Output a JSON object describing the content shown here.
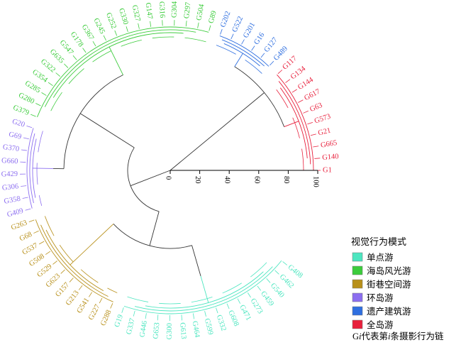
{
  "groups": [
    {
      "key": "single",
      "label": "单点游",
      "color": "#4de6c0"
    },
    {
      "key": "sea",
      "label": "海岛风光游",
      "color": "#3ccc3c"
    },
    {
      "key": "street",
      "label": "街巷空间游",
      "color": "#b8901a"
    },
    {
      "key": "ring",
      "label": "环岛游",
      "color": "#8c6ef0"
    },
    {
      "key": "heritage",
      "label": "遗产建筑游",
      "color": "#2f6fe0"
    },
    {
      "key": "whole",
      "label": "全岛游",
      "color": "#e8203c"
    }
  ],
  "legend": {
    "title": "视觉行为模式",
    "note_prefix": "G",
    "note_italic": "i",
    "note_suffix": "代表第",
    "note_italic2": "i",
    "note_end": "条摄影行为链"
  },
  "scale": {
    "ticks": [
      "0",
      "20",
      "40",
      "60",
      "80",
      "100"
    ]
  },
  "leaves": [
    {
      "label": "G1",
      "group": "whole"
    },
    {
      "label": "G140",
      "group": "whole"
    },
    {
      "label": "G665",
      "group": "whole"
    },
    {
      "label": "G21",
      "group": "whole"
    },
    {
      "label": "G573",
      "group": "whole"
    },
    {
      "label": "G63",
      "group": "whole"
    },
    {
      "label": "G617",
      "group": "whole"
    },
    {
      "label": "G144",
      "group": "whole"
    },
    {
      "label": "G134",
      "group": "whole"
    },
    {
      "label": "G117",
      "group": "whole"
    },
    {
      "label": "G489",
      "group": "heritage"
    },
    {
      "label": "G127",
      "group": "heritage"
    },
    {
      "label": "G16",
      "group": "heritage"
    },
    {
      "label": "G201",
      "group": "heritage"
    },
    {
      "label": "G522",
      "group": "heritage"
    },
    {
      "label": "G202",
      "group": "heritage"
    },
    {
      "label": "G89",
      "group": "sea"
    },
    {
      "label": "G504",
      "group": "sea"
    },
    {
      "label": "G297",
      "group": "sea"
    },
    {
      "label": "G304",
      "group": "sea"
    },
    {
      "label": "G316",
      "group": "sea"
    },
    {
      "label": "G147",
      "group": "sea"
    },
    {
      "label": "G327",
      "group": "sea"
    },
    {
      "label": "G330",
      "group": "sea"
    },
    {
      "label": "G252",
      "group": "sea"
    },
    {
      "label": "G245",
      "group": "sea"
    },
    {
      "label": "G367",
      "group": "sea"
    },
    {
      "label": "G178",
      "group": "sea"
    },
    {
      "label": "G547",
      "group": "sea"
    },
    {
      "label": "G635",
      "group": "sea"
    },
    {
      "label": "G322",
      "group": "sea"
    },
    {
      "label": "G354",
      "group": "sea"
    },
    {
      "label": "G285",
      "group": "sea"
    },
    {
      "label": "G280",
      "group": "sea"
    },
    {
      "label": "G379",
      "group": "sea"
    },
    {
      "label": "G20",
      "group": "ring"
    },
    {
      "label": "G69",
      "group": "ring"
    },
    {
      "label": "G370",
      "group": "ring"
    },
    {
      "label": "G660",
      "group": "ring"
    },
    {
      "label": "G429",
      "group": "ring"
    },
    {
      "label": "G306",
      "group": "ring"
    },
    {
      "label": "G358",
      "group": "ring"
    },
    {
      "label": "G409",
      "group": "ring"
    },
    {
      "label": "G263",
      "group": "street"
    },
    {
      "label": "G68",
      "group": "street"
    },
    {
      "label": "G537",
      "group": "street"
    },
    {
      "label": "G508",
      "group": "street"
    },
    {
      "label": "G529",
      "group": "street"
    },
    {
      "label": "G623",
      "group": "street"
    },
    {
      "label": "G157",
      "group": "street"
    },
    {
      "label": "G213",
      "group": "street"
    },
    {
      "label": "G541",
      "group": "street"
    },
    {
      "label": "G227",
      "group": "street"
    },
    {
      "label": "G288",
      "group": "street"
    },
    {
      "label": "G19",
      "group": "single"
    },
    {
      "label": "G337",
      "group": "single"
    },
    {
      "label": "G446",
      "group": "single"
    },
    {
      "label": "G653",
      "group": "single"
    },
    {
      "label": "G300",
      "group": "single"
    },
    {
      "label": "G613",
      "group": "single"
    },
    {
      "label": "G464",
      "group": "single"
    },
    {
      "label": "G599",
      "group": "single"
    },
    {
      "label": "G332",
      "group": "single"
    },
    {
      "label": "G608",
      "group": "single"
    },
    {
      "label": "G471",
      "group": "single"
    },
    {
      "label": "G273",
      "group": "single"
    },
    {
      "label": "G459",
      "group": "single"
    },
    {
      "label": "G540",
      "group": "single"
    },
    {
      "label": "G462",
      "group": "single"
    },
    {
      "label": "G408",
      "group": "single"
    }
  ]
}
